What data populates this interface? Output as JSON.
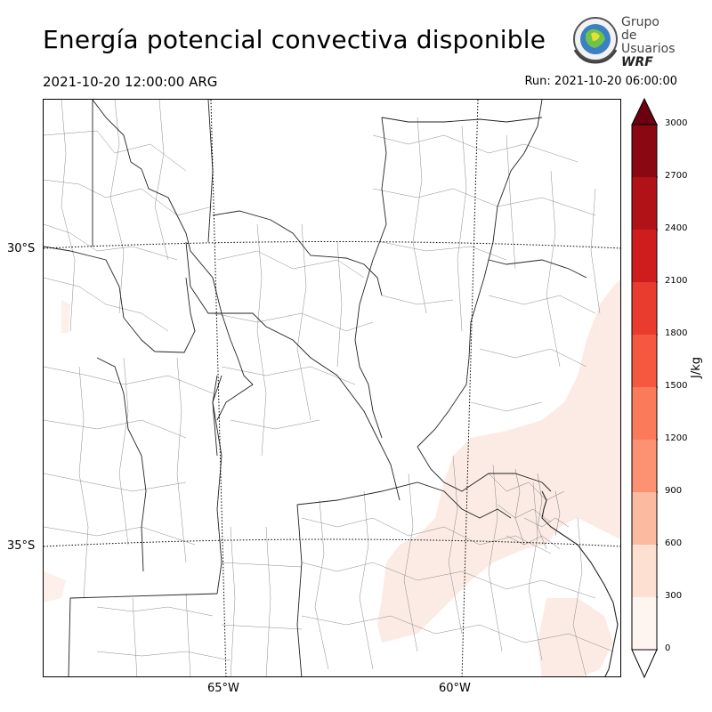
{
  "title": "Energía potencial convectiva disponible",
  "valid_time": "2021-10-20 12:00:00 ARG",
  "run_time": "Run: 2021-10-20 06:00:00",
  "logo": {
    "line1": "Grupo de",
    "line2": "Usuarios",
    "line3": "WRF"
  },
  "map": {
    "lat_labels": [
      "30°S",
      "35°S"
    ],
    "lon_labels": [
      "65°W",
      "60°W"
    ]
  },
  "colorbar": {
    "unit": "J/kg",
    "ticks": [
      "0",
      "300",
      "600",
      "900",
      "1200",
      "1500",
      "1800",
      "2100",
      "2400",
      "2700",
      "3000"
    ],
    "colors": [
      "#fff5f0",
      "#fde0d2",
      "#fcbba1",
      "#fc9272",
      "#fb7a5a",
      "#f6573f",
      "#ea3b2f",
      "#cf1d1e",
      "#b01217",
      "#8a0812",
      "#6a0010"
    ]
  }
}
